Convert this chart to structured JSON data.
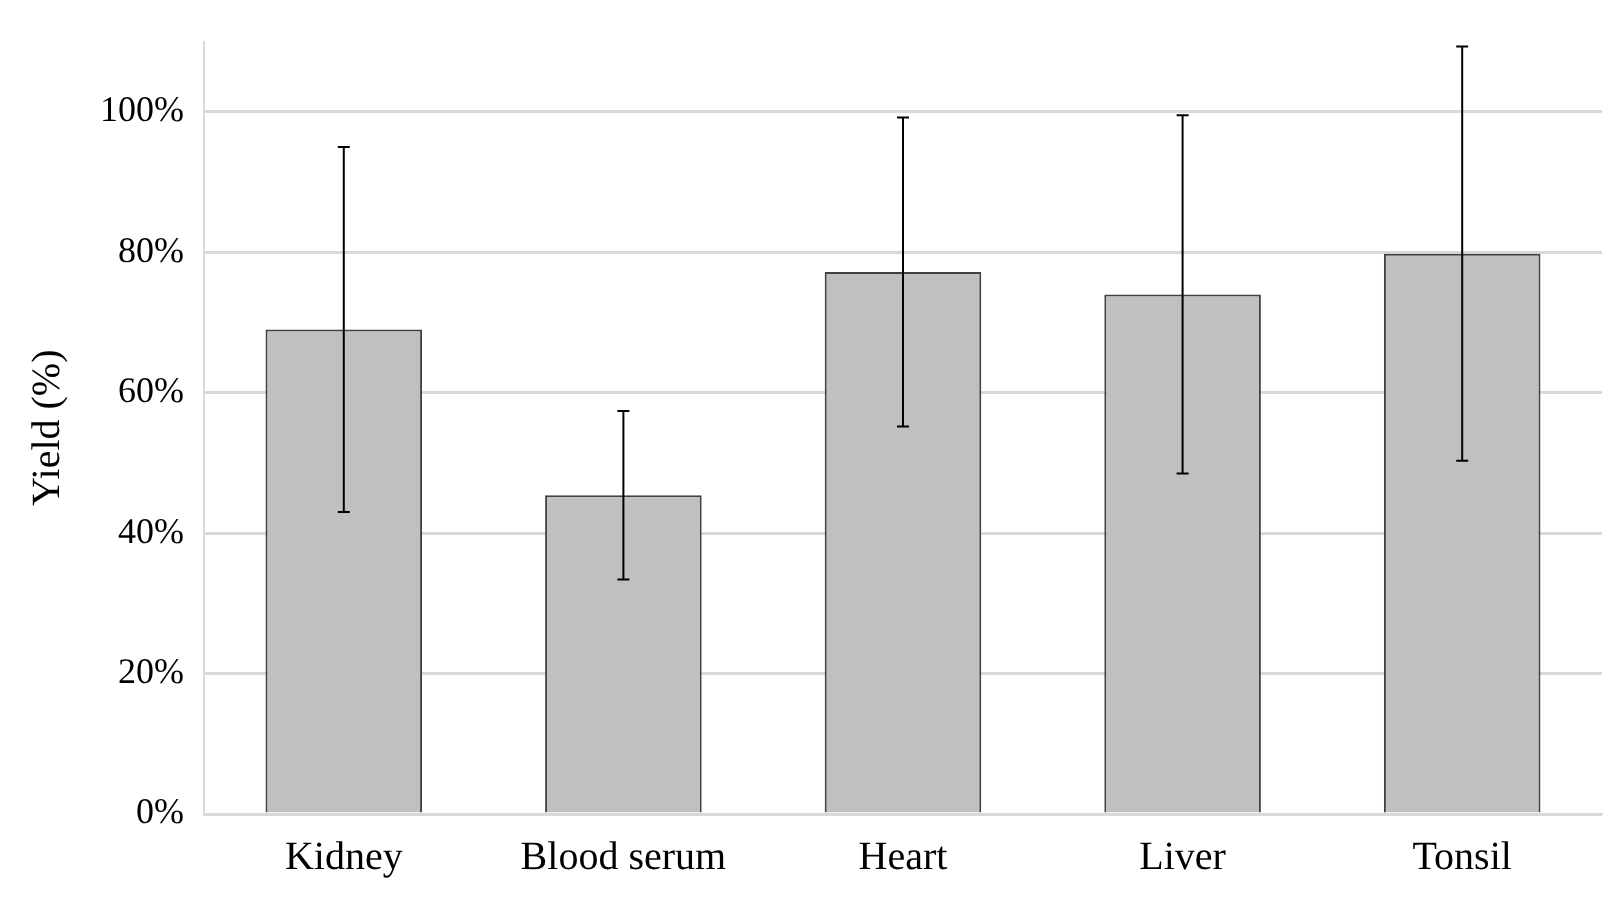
{
  "chart_data": {
    "type": "bar",
    "ylabel": "Yield (%)",
    "categories": [
      "Kidney",
      "Blood serum",
      "Heart",
      "Liver",
      "Tonsil"
    ],
    "values": [
      69,
      45.4,
      77.2,
      74,
      79.8
    ],
    "errors": [
      26,
      12,
      22,
      25.5,
      29.5
    ],
    "color": "#c0c0c0",
    "ylim": [
      0,
      110
    ],
    "yticks": [
      {
        "value": 0,
        "label": "0%"
      },
      {
        "value": 20,
        "label": "20%"
      },
      {
        "value": 40,
        "label": "40%"
      },
      {
        "value": 60,
        "label": "60%"
      },
      {
        "value": 80,
        "label": "80%"
      },
      {
        "value": 100,
        "label": "100%"
      }
    ],
    "grid": "y",
    "legend": false
  }
}
